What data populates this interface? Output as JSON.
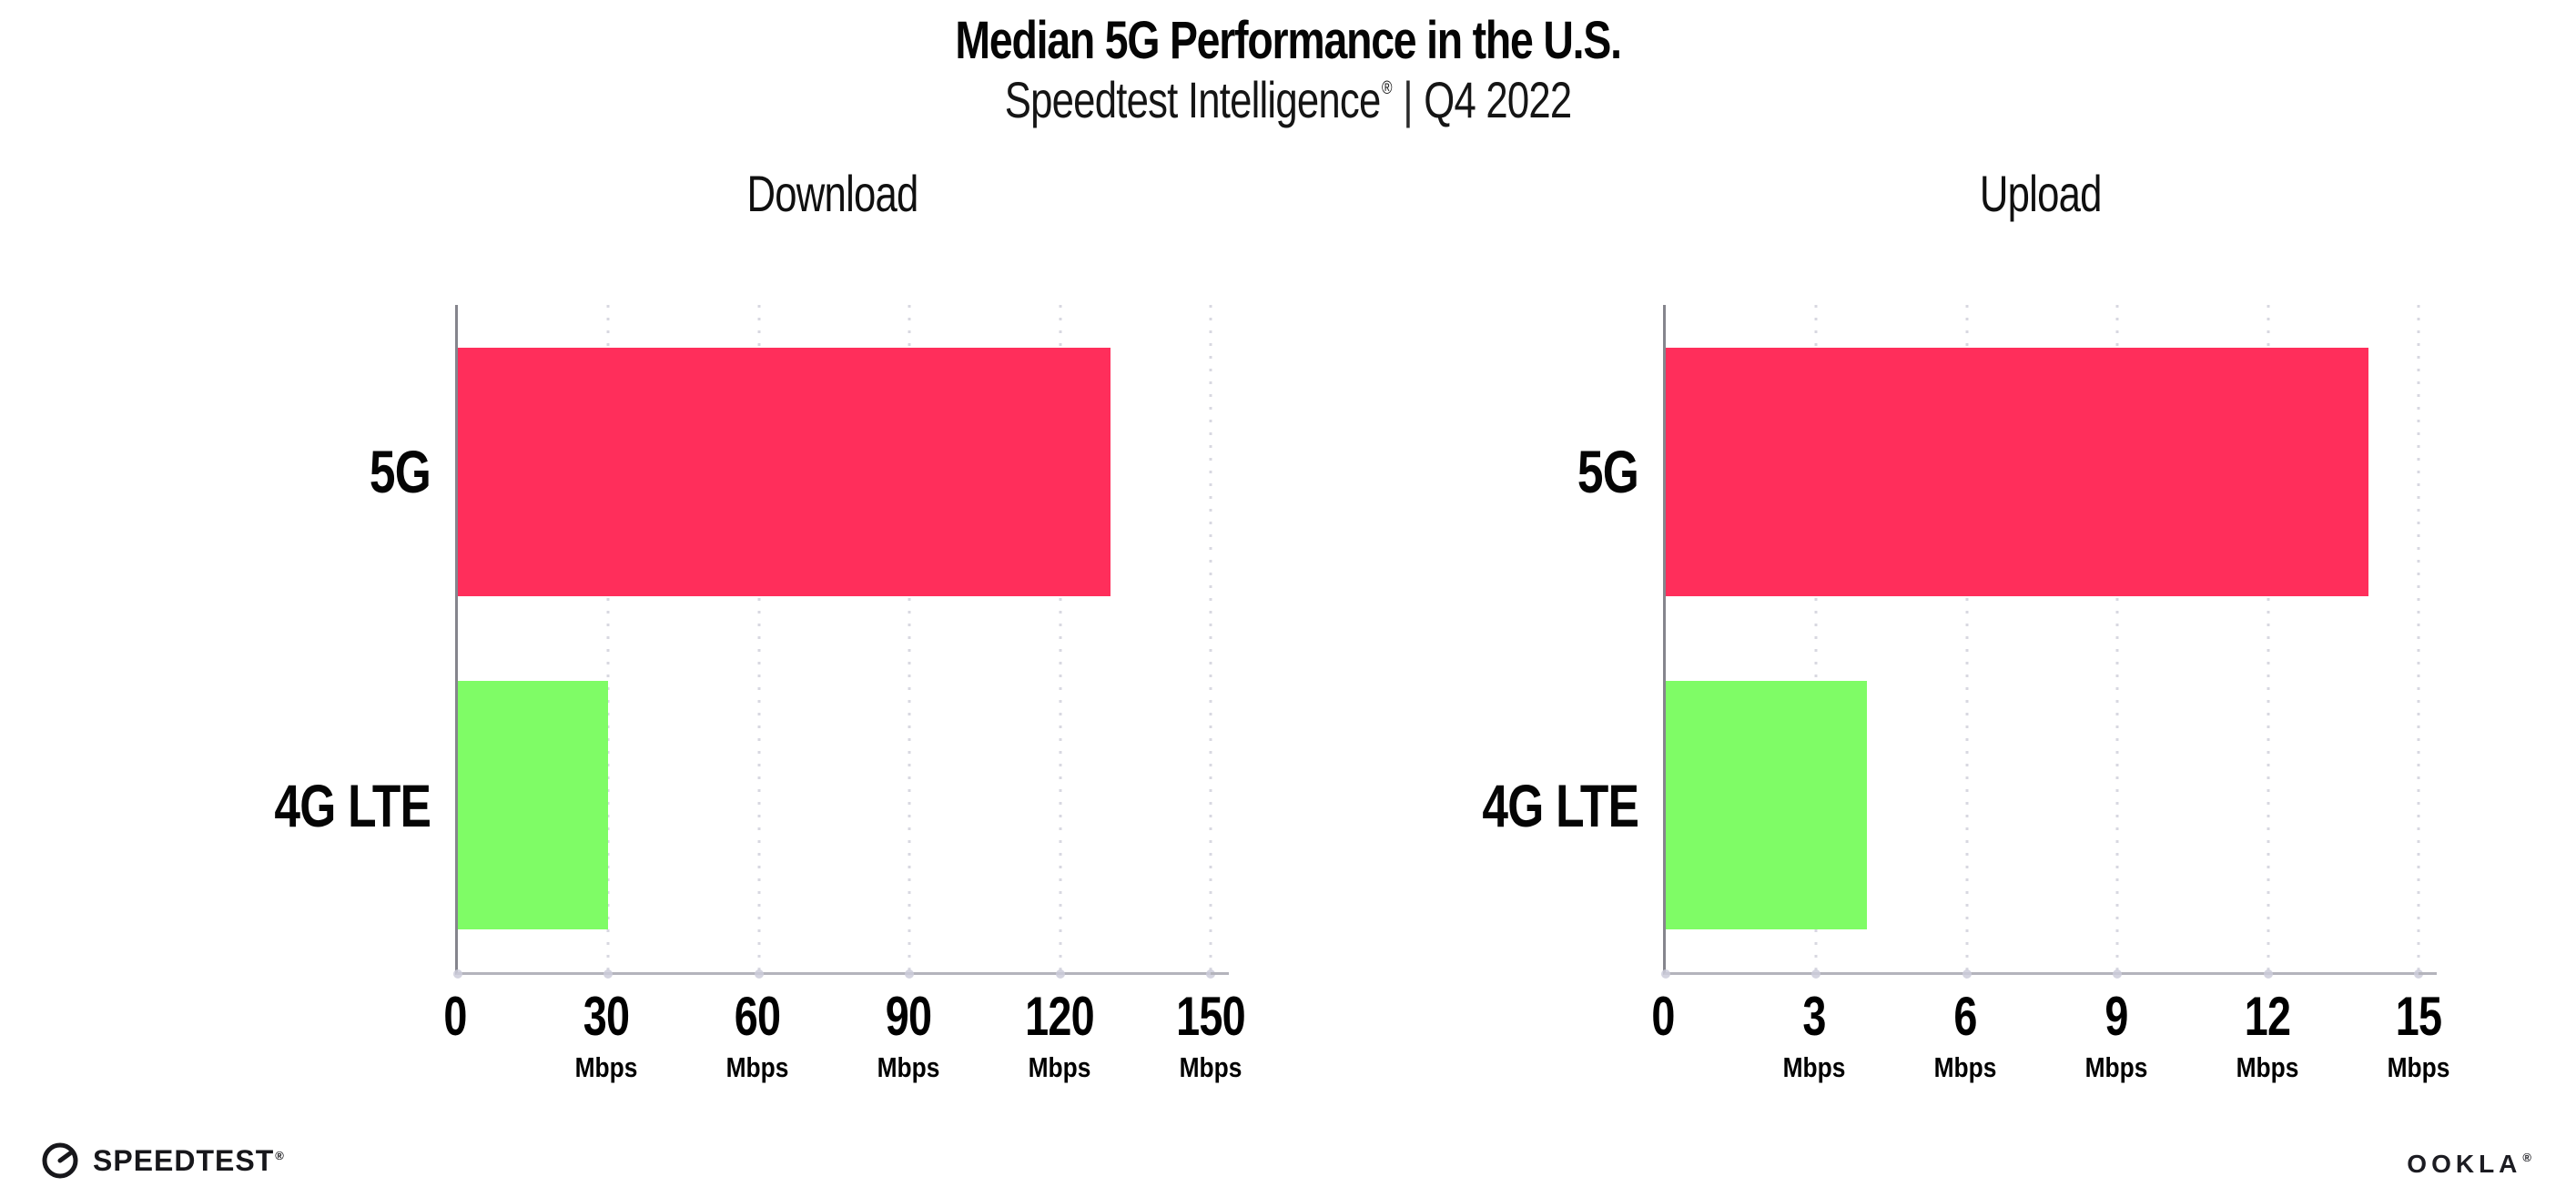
{
  "header": {
    "title": "Median 5G Performance in the U.S.",
    "subtitle_brand": "Speedtest Intelligence",
    "subtitle_reg": "®",
    "subtitle_separator": "|",
    "subtitle_period": "Q4 2022"
  },
  "chart_data": [
    {
      "type": "bar",
      "orientation": "horizontal",
      "title": "Download",
      "categories": [
        "5G",
        "4G LTE"
      ],
      "values": [
        130,
        30
      ],
      "unit": "Mbps",
      "xlim": [
        0,
        150
      ],
      "xticks": [
        0,
        30,
        60,
        90,
        120,
        150
      ],
      "bar_colors": [
        "#ff2e5b",
        "#7ffc66"
      ],
      "grid": "dotted-vertical",
      "legend": "none"
    },
    {
      "type": "bar",
      "orientation": "horizontal",
      "title": "Upload",
      "categories": [
        "5G",
        "4G LTE"
      ],
      "values": [
        14,
        4
      ],
      "unit": "Mbps",
      "xlim": [
        0,
        15
      ],
      "xticks": [
        0,
        3,
        6,
        9,
        12,
        15
      ],
      "bar_colors": [
        "#ff2e5b",
        "#7ffc66"
      ],
      "grid": "dotted-vertical",
      "legend": "none"
    }
  ],
  "footer": {
    "speedtest_label": "SPEEDTEST",
    "speedtest_reg": "®",
    "ookla_label": "OOKLA",
    "ookla_reg": "®"
  }
}
